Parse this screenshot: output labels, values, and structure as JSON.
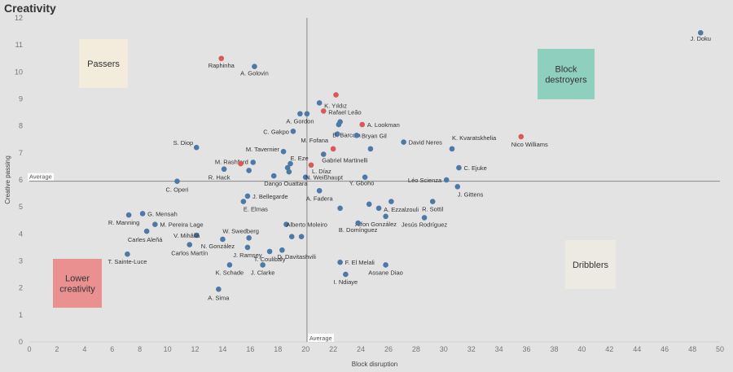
{
  "title": "Creativity",
  "colors": {
    "blue": "#4e79a7",
    "red": "#d9585a",
    "background": "#e3e3e3",
    "passers_box": "#f3ebdc",
    "block_destroyers_box": "#8fcfbe",
    "lower_creativity_box": "#ea9090",
    "dribblers_box": "#eceae3"
  },
  "chart_data": {
    "type": "scatter",
    "title": "Creativity",
    "xlabel": "Block disruption",
    "ylabel": "Creative passing",
    "xlim": [
      0,
      50
    ],
    "ylim": [
      0,
      12
    ],
    "xticks": [
      0,
      2,
      4,
      6,
      8,
      10,
      12,
      14,
      16,
      18,
      20,
      22,
      24,
      26,
      28,
      30,
      32,
      34,
      36,
      38,
      40,
      42,
      44,
      46,
      48,
      50
    ],
    "yticks": [
      0,
      1,
      2,
      3,
      4,
      5,
      6,
      7,
      8,
      9,
      10,
      11,
      12
    ],
    "grid": false,
    "reference_lines": [
      {
        "axis": "x",
        "value": 20.1,
        "label": "Average"
      },
      {
        "axis": "y",
        "value": 5.95,
        "label": "Average"
      }
    ],
    "quadrant_labels": [
      {
        "text": "Passers",
        "color": "passers_box"
      },
      {
        "text": "Block destroyers",
        "color": "block_destroyers_box"
      },
      {
        "text": "Lower creativity",
        "color": "lower_creativity_box"
      },
      {
        "text": "Dribblers",
        "color": "dribblers_box"
      }
    ],
    "points": [
      {
        "label": "J. Doku",
        "x": 48.6,
        "y": 11.45,
        "color": "blue"
      },
      {
        "label": "Raphinha",
        "x": 13.9,
        "y": 10.5,
        "color": "red"
      },
      {
        "label": "A. Golovin",
        "x": 16.3,
        "y": 10.2,
        "color": "blue"
      },
      {
        "label": "K. Yıldız",
        "x": 21.0,
        "y": 8.85,
        "color": "blue"
      },
      {
        "label": "",
        "x": 22.2,
        "y": 9.15,
        "color": "red"
      },
      {
        "label": "Rafael Leão",
        "x": 21.3,
        "y": 8.55,
        "color": "red"
      },
      {
        "label": "A. Gordon",
        "x": 19.6,
        "y": 8.45,
        "color": "blue"
      },
      {
        "label": "",
        "x": 20.1,
        "y": 8.45,
        "color": "blue"
      },
      {
        "label": "",
        "x": 22.5,
        "y": 8.15,
        "color": "blue"
      },
      {
        "label": "",
        "x": 22.4,
        "y": 8.05,
        "color": "blue"
      },
      {
        "label": "A. Lookman",
        "x": 24.1,
        "y": 8.05,
        "color": "red"
      },
      {
        "label": "C. Gakpo",
        "x": 19.1,
        "y": 7.8,
        "color": "blue"
      },
      {
        "label": "B. Barcola",
        "x": 22.3,
        "y": 7.7,
        "color": "blue"
      },
      {
        "label": "Bryan Gil",
        "x": 23.7,
        "y": 7.65,
        "color": "blue"
      },
      {
        "label": "K. Kvaratskhelia",
        "x": 30.6,
        "y": 7.15,
        "color": "blue"
      },
      {
        "label": "Nico Williams",
        "x": 35.6,
        "y": 7.6,
        "color": "red"
      },
      {
        "label": "David Neres",
        "x": 27.1,
        "y": 7.4,
        "color": "blue"
      },
      {
        "label": "M. Fofana",
        "x": 22.0,
        "y": 7.15,
        "color": "red"
      },
      {
        "label": "",
        "x": 24.7,
        "y": 7.15,
        "color": "blue"
      },
      {
        "label": "S. Diop",
        "x": 12.1,
        "y": 7.2,
        "color": "blue"
      },
      {
        "label": "M. Tavernier",
        "x": 18.4,
        "y": 7.05,
        "color": "blue"
      },
      {
        "label": "Gabriel Martinelli",
        "x": 21.3,
        "y": 6.95,
        "color": "blue"
      },
      {
        "label": "M. Rashford",
        "x": 16.2,
        "y": 6.65,
        "color": "blue"
      },
      {
        "label": "",
        "x": 15.3,
        "y": 6.6,
        "color": "red"
      },
      {
        "label": "E. Eze",
        "x": 18.9,
        "y": 6.6,
        "color": "blue"
      },
      {
        "label": "",
        "x": 18.7,
        "y": 6.45,
        "color": "blue"
      },
      {
        "label": "L. Díaz",
        "x": 20.4,
        "y": 6.55,
        "color": "red"
      },
      {
        "label": "R. Hack",
        "x": 14.1,
        "y": 6.4,
        "color": "blue"
      },
      {
        "label": "",
        "x": 15.9,
        "y": 6.35,
        "color": "blue"
      },
      {
        "label": "",
        "x": 18.8,
        "y": 6.3,
        "color": "blue"
      },
      {
        "label": "Dango Ouattara",
        "x": 17.7,
        "y": 6.15,
        "color": "blue"
      },
      {
        "label": "N. Weißhaupt",
        "x": 20.0,
        "y": 6.1,
        "color": "blue"
      },
      {
        "label": "C. Ejuke",
        "x": 31.1,
        "y": 6.45,
        "color": "blue"
      },
      {
        "label": "C. Operi",
        "x": 10.7,
        "y": 5.95,
        "color": "blue"
      },
      {
        "label": "Y. Gboho",
        "x": 24.3,
        "y": 6.1,
        "color": "blue"
      },
      {
        "label": "Léo Scienza",
        "x": 30.2,
        "y": 6.0,
        "color": "blue"
      },
      {
        "label": "J. Gittens",
        "x": 31.0,
        "y": 5.75,
        "color": "blue"
      },
      {
        "label": "A. Fadera",
        "x": 21.0,
        "y": 5.6,
        "color": "blue"
      },
      {
        "label": "J. Bellegarde",
        "x": 15.8,
        "y": 5.4,
        "color": "blue"
      },
      {
        "label": "E. Elmas",
        "x": 15.5,
        "y": 5.2,
        "color": "blue"
      },
      {
        "label": "R. Sottil",
        "x": 29.2,
        "y": 5.2,
        "color": "blue"
      },
      {
        "label": "",
        "x": 26.2,
        "y": 5.2,
        "color": "blue"
      },
      {
        "label": "",
        "x": 24.6,
        "y": 5.1,
        "color": "blue"
      },
      {
        "label": "A. Ezzalzouli",
        "x": 25.3,
        "y": 4.95,
        "color": "blue"
      },
      {
        "label": "",
        "x": 22.5,
        "y": 4.95,
        "color": "blue"
      },
      {
        "label": "Alfon González",
        "x": 25.8,
        "y": 4.65,
        "color": "blue"
      },
      {
        "label": "R. Manning",
        "x": 7.2,
        "y": 4.7,
        "color": "blue"
      },
      {
        "label": "G. Mensah",
        "x": 8.2,
        "y": 4.75,
        "color": "blue"
      },
      {
        "label": "M. Pereira Lage",
        "x": 9.1,
        "y": 4.35,
        "color": "blue"
      },
      {
        "label": "Jesús Rodríguez",
        "x": 28.6,
        "y": 4.6,
        "color": "blue"
      },
      {
        "label": "Alberto Moleiro",
        "x": 18.6,
        "y": 4.35,
        "color": "blue"
      },
      {
        "label": "B. Domínguez",
        "x": 23.8,
        "y": 4.4,
        "color": "blue"
      },
      {
        "label": "Carles Aleñá",
        "x": 8.5,
        "y": 4.1,
        "color": "blue"
      },
      {
        "label": "W. Swedberg",
        "x": 15.9,
        "y": 3.85,
        "color": "blue"
      },
      {
        "label": "V. Mihăilă",
        "x": 12.1,
        "y": 3.95,
        "color": "blue"
      },
      {
        "label": "",
        "x": 19.0,
        "y": 3.9,
        "color": "blue"
      },
      {
        "label": "",
        "x": 19.7,
        "y": 3.9,
        "color": "blue"
      },
      {
        "label": "Carlos Martín",
        "x": 11.6,
        "y": 3.6,
        "color": "blue"
      },
      {
        "label": "N. González",
        "x": 14.0,
        "y": 3.8,
        "color": "blue"
      },
      {
        "label": "D. Davitashvili",
        "x": 18.3,
        "y": 3.4,
        "color": "blue"
      },
      {
        "label": "J. Ramsey",
        "x": 15.8,
        "y": 3.5,
        "color": "blue"
      },
      {
        "label": "T. Coulibaly",
        "x": 17.4,
        "y": 3.35,
        "color": "blue"
      },
      {
        "label": "T. Sainte-Luce",
        "x": 7.1,
        "y": 3.25,
        "color": "blue"
      },
      {
        "label": "F. El Melali",
        "x": 22.5,
        "y": 2.95,
        "color": "blue"
      },
      {
        "label": "Assane Diao",
        "x": 25.8,
        "y": 2.85,
        "color": "blue"
      },
      {
        "label": "K. Schade",
        "x": 14.5,
        "y": 2.85,
        "color": "blue"
      },
      {
        "label": "J. Clarke",
        "x": 16.9,
        "y": 2.85,
        "color": "blue"
      },
      {
        "label": "I. Ndiaye",
        "x": 22.9,
        "y": 2.5,
        "color": "blue"
      },
      {
        "label": "A. Sima",
        "x": 13.7,
        "y": 1.95,
        "color": "blue"
      }
    ]
  }
}
